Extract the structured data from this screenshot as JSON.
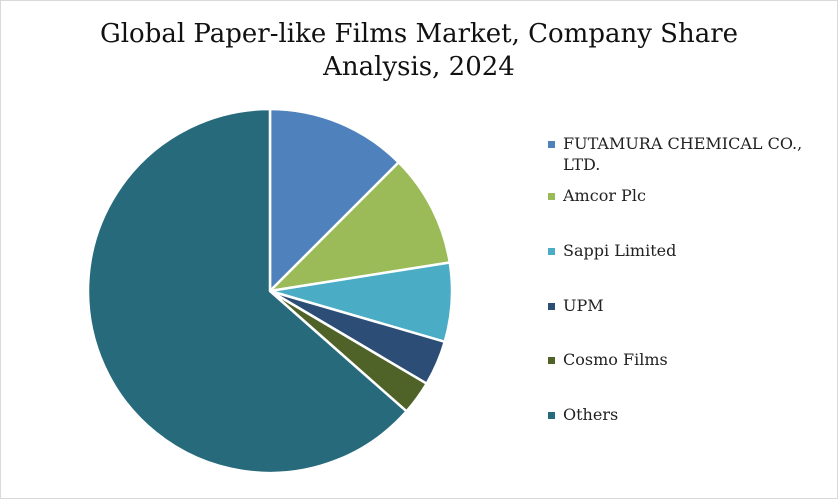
{
  "title_lines": [
    "Global Paper-like Films Market, Company Share",
    "Analysis, 2024"
  ],
  "chart_data": {
    "type": "pie",
    "title": "Global Paper-like Films Market, Company Share Analysis, 2024",
    "legend_position": "right",
    "start_angle_deg": 0,
    "direction": "clockwise",
    "slices": [
      {
        "label": "FUTAMURA CHEMICAL CO., LTD.",
        "value": 12.5,
        "color": "#4F81BD"
      },
      {
        "label": "Amcor Plc",
        "value": 10.0,
        "color": "#9BBB59"
      },
      {
        "label": "Sappi Limited",
        "value": 7.0,
        "color": "#4BACC6"
      },
      {
        "label": "UPM",
        "value": 4.0,
        "color": "#2C4D75"
      },
      {
        "label": "Cosmo Films",
        "value": 3.0,
        "color": "#4F6228"
      },
      {
        "label": "Others",
        "value": 63.5,
        "color": "#276A7C"
      }
    ]
  }
}
